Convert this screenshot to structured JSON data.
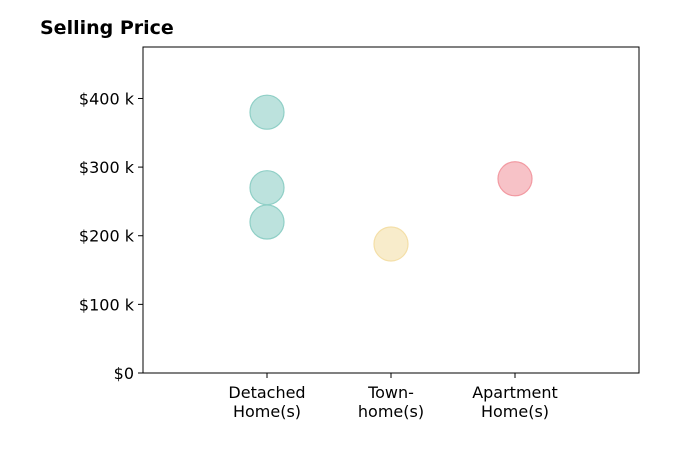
{
  "chart_data": {
    "type": "scatter",
    "title": "Selling Price",
    "xlabel": "",
    "ylabel": "",
    "categories": [
      [
        "Detached",
        "Home(s)"
      ],
      [
        "Town-",
        "home(s)"
      ],
      [
        "Apartment",
        "Home(s)"
      ]
    ],
    "y_ticks": [
      {
        "value": 0,
        "label": "$0"
      },
      {
        "value": 100000,
        "label": "$100 k"
      },
      {
        "value": 200000,
        "label": "$200 k"
      },
      {
        "value": 300000,
        "label": "$300 k"
      },
      {
        "value": 400000,
        "label": "$400 k"
      }
    ],
    "ylim": [
      0,
      475000
    ],
    "xlim": [
      -1,
      3
    ],
    "grid": false,
    "points": [
      {
        "category": 0,
        "value": 380000,
        "color": "#8fcfc6"
      },
      {
        "category": 0,
        "value": 270000,
        "color": "#8fcfc6"
      },
      {
        "category": 0,
        "value": 220000,
        "color": "#8fcfc6"
      },
      {
        "category": 1,
        "value": 188000,
        "color": "#f4dfa8"
      },
      {
        "category": 2,
        "value": 283000,
        "color": "#f29aa2"
      }
    ]
  }
}
